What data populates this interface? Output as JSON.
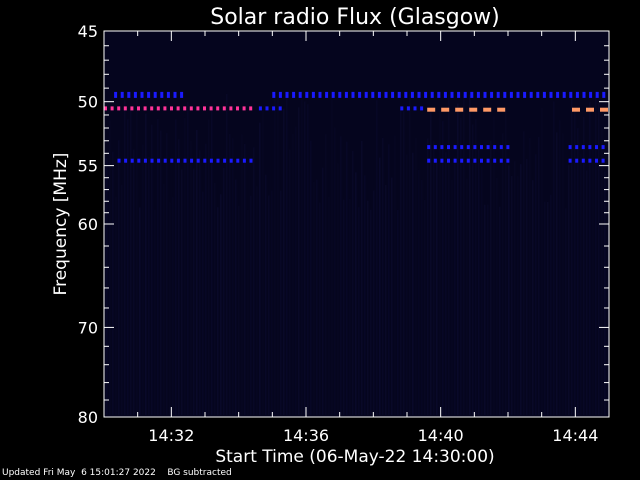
{
  "chart_data": {
    "type": "heatmap",
    "title": "Solar radio Flux (Glasgow)",
    "xlabel": "Start Time (06-May-22 14:30:00)",
    "ylabel": "Frequency [MHz]",
    "xlim_minutes": [
      0,
      15
    ],
    "ylim": [
      45,
      80
    ],
    "y_scale": "log",
    "x_ticks": [
      {
        "minute": 2,
        "label": "14:32"
      },
      {
        "minute": 6,
        "label": "14:36"
      },
      {
        "minute": 10,
        "label": "14:40"
      },
      {
        "minute": 14,
        "label": "14:44"
      }
    ],
    "y_ticks": [
      {
        "value": 45,
        "label": "45"
      },
      {
        "value": 50,
        "label": "50"
      },
      {
        "value": 55,
        "label": "55"
      },
      {
        "value": 60,
        "label": "60"
      },
      {
        "value": 70,
        "label": "70"
      },
      {
        "value": 80,
        "label": "80"
      }
    ],
    "colors": {
      "background": "#000000",
      "plot_background": "#05051e",
      "low": "#1a1aff",
      "medium": "#ff3399",
      "high": "#ff9966"
    },
    "bands": [
      {
        "frequency": 49.5,
        "intensity": "low",
        "segments": [
          [
            0.3,
            2.3
          ],
          [
            5.0,
            15.0
          ]
        ]
      },
      {
        "frequency": 50.5,
        "intensity": "medium",
        "segments": [
          [
            0.0,
            4.4
          ]
        ]
      },
      {
        "frequency": 50.6,
        "intensity": "high",
        "segments": [
          [
            9.6,
            12.1
          ],
          [
            13.9,
            15.0
          ]
        ]
      },
      {
        "frequency": 50.5,
        "intensity": "low",
        "segments": [
          [
            4.6,
            5.3
          ],
          [
            8.8,
            9.5
          ]
        ]
      },
      {
        "frequency": 53.5,
        "intensity": "low",
        "segments": [
          [
            9.6,
            12.1
          ],
          [
            13.8,
            15.0
          ]
        ]
      },
      {
        "frequency": 54.6,
        "intensity": "low",
        "segments": [
          [
            0.4,
            4.4
          ],
          [
            9.6,
            12.1
          ],
          [
            13.8,
            15.0
          ]
        ]
      }
    ]
  },
  "footer": {
    "updated": "Updated Fri May  6 15:01:27 2022",
    "note": "BG subtracted"
  }
}
